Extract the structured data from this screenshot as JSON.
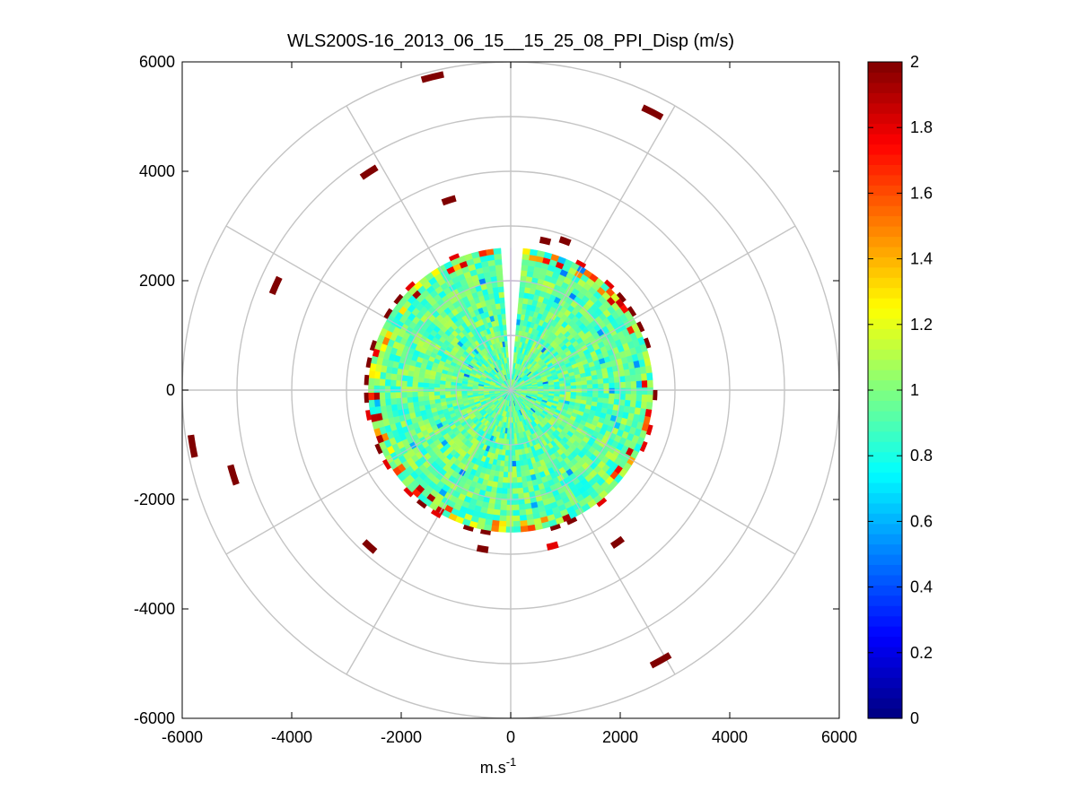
{
  "chart_data": {
    "type": "heatmap",
    "subtype": "polar PPI scan",
    "title": "WLS200S-16_2013_06_15__15_25_08_PPI_Disp (m/s)",
    "xlabel": "m.s",
    "xlabel_superscript": "-1",
    "ylabel": "",
    "xlim": [
      -6000,
      6000
    ],
    "ylim": [
      -6000,
      6000
    ],
    "xticks": [
      -6000,
      -4000,
      -2000,
      0,
      2000,
      4000,
      6000
    ],
    "yticks": [
      -6000,
      -4000,
      -2000,
      0,
      2000,
      4000,
      6000
    ],
    "xtick_labels": [
      "-6000",
      "-4000",
      "-2000",
      "0",
      "2000",
      "4000",
      "6000"
    ],
    "ytick_labels": [
      "-6000",
      "-4000",
      "-2000",
      "0",
      "2000",
      "4000",
      "6000"
    ],
    "polar_grid": {
      "rings": [
        1000,
        2000,
        3000,
        4000,
        5000,
        6000
      ],
      "spoke_step_deg": 30
    },
    "scan": {
      "min_range": 0,
      "max_range": 2600,
      "gap_azimuth_deg": [
        355,
        5
      ],
      "typical_value": 0.95
    },
    "sparse_returns": [
      {
        "range": 5900,
        "azimuth_deg": 346,
        "value": 2.0
      },
      {
        "range": 5700,
        "azimuth_deg": 27,
        "value": 2.0
      },
      {
        "range": 4750,
        "azimuth_deg": 327,
        "value": 2.0
      },
      {
        "range": 3650,
        "azimuth_deg": 342,
        "value": 2.0
      },
      {
        "range": 4700,
        "azimuth_deg": 294,
        "value": 2.0
      },
      {
        "range": 5900,
        "azimuth_deg": 260,
        "value": 2.0
      },
      {
        "range": 5300,
        "azimuth_deg": 253,
        "value": 2.0
      },
      {
        "range": 3850,
        "azimuth_deg": 222,
        "value": 2.0
      },
      {
        "range": 5650,
        "azimuth_deg": 151,
        "value": 2.0
      },
      {
        "range": 3400,
        "azimuth_deg": 145,
        "value": 2.0
      },
      {
        "range": 2950,
        "azimuth_deg": 190,
        "value": 2.0
      },
      {
        "range": 2950,
        "azimuth_deg": 165,
        "value": 1.8
      },
      {
        "range": 2900,
        "azimuth_deg": 20,
        "value": 2.0
      },
      {
        "range": 2800,
        "azimuth_deg": 13,
        "value": 2.0
      }
    ],
    "colorbar": {
      "colormap": "jet",
      "range": [
        0,
        2
      ],
      "ticks": [
        0,
        0.2,
        0.4,
        0.6,
        0.8,
        1,
        1.2,
        1.4,
        1.6,
        1.8,
        2
      ],
      "tick_labels": [
        "0",
        "0.2",
        "0.4",
        "0.6",
        "0.8",
        "1",
        "1.2",
        "1.4",
        "1.6",
        "1.8",
        "2"
      ]
    },
    "grid": false,
    "legend": "none"
  }
}
